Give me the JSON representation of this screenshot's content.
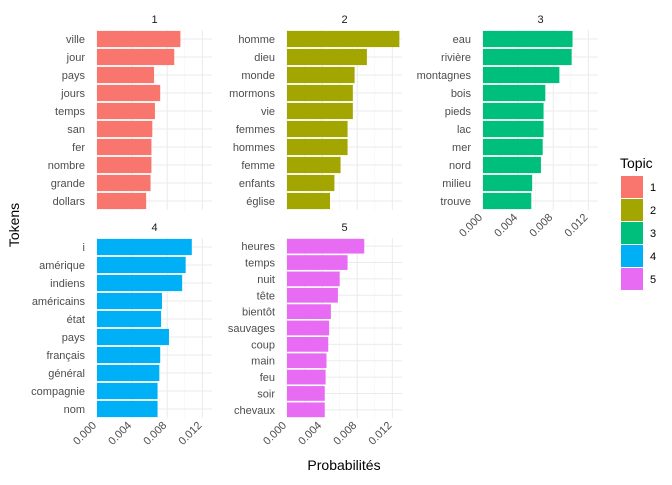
{
  "chart_data": {
    "type": "bar",
    "orientation": "horizontal",
    "layout": "facet-grid",
    "xlabel": "Probabilités",
    "ylabel": "Tokens",
    "xlim": [
      0,
      0.0131
    ],
    "x_ticks": [
      0.0,
      0.004,
      0.008,
      0.012
    ],
    "x_tick_labels": [
      "0.000",
      "0.004",
      "0.008",
      "0.012"
    ],
    "grid": true,
    "legend": {
      "title": "Topic",
      "position": "right",
      "items": [
        {
          "label": "1",
          "color": "#F8766D"
        },
        {
          "label": "2",
          "color": "#A3A500"
        },
        {
          "label": "3",
          "color": "#00BF7D"
        },
        {
          "label": "4",
          "color": "#00B0F6"
        },
        {
          "label": "5",
          "color": "#E76BF3"
        }
      ]
    },
    "facets": [
      {
        "title": "1",
        "color": "#F8766D",
        "categories": [
          "ville",
          "jour",
          "pays",
          "jours",
          "temps",
          "san",
          "fer",
          "nombre",
          "grande",
          "dollars"
        ],
        "values": [
          0.0095,
          0.0088,
          0.0065,
          0.0072,
          0.0066,
          0.0063,
          0.0062,
          0.0062,
          0.0061,
          0.0056
        ]
      },
      {
        "title": "2",
        "color": "#A3A500",
        "categories": [
          "homme",
          "dieu",
          "monde",
          "mormons",
          "vie",
          "femmes",
          "hommes",
          "femme",
          "enfants",
          "église"
        ],
        "values": [
          0.0128,
          0.0091,
          0.0077,
          0.0075,
          0.0075,
          0.0069,
          0.0069,
          0.0061,
          0.0054,
          0.0049
        ]
      },
      {
        "title": "3",
        "color": "#00BF7D",
        "categories": [
          "eau",
          "rivière",
          "montagnes",
          "bois",
          "pieds",
          "lac",
          "mer",
          "nord",
          "milieu",
          "trouve"
        ],
        "values": [
          0.0102,
          0.0101,
          0.0087,
          0.0071,
          0.0069,
          0.0069,
          0.0068,
          0.0066,
          0.0056,
          0.0055
        ]
      },
      {
        "title": "4",
        "color": "#00B0F6",
        "categories": [
          "i",
          "amérique",
          "indiens",
          "américains",
          "état",
          "pays",
          "français",
          "général",
          "compagnie",
          "nom"
        ],
        "values": [
          0.0108,
          0.0101,
          0.0097,
          0.0074,
          0.0073,
          0.0082,
          0.0072,
          0.0071,
          0.0069,
          0.0069
        ]
      },
      {
        "title": "5",
        "color": "#E76BF3",
        "categories": [
          "heures",
          "temps",
          "nuit",
          "tête",
          "bientôt",
          "sauvages",
          "coup",
          "main",
          "feu",
          "soir",
          "chevaux"
        ],
        "values": [
          0.0088,
          0.0069,
          0.006,
          0.0058,
          0.005,
          0.0048,
          0.0047,
          0.0045,
          0.0044,
          0.0043,
          0.0043
        ]
      }
    ]
  }
}
